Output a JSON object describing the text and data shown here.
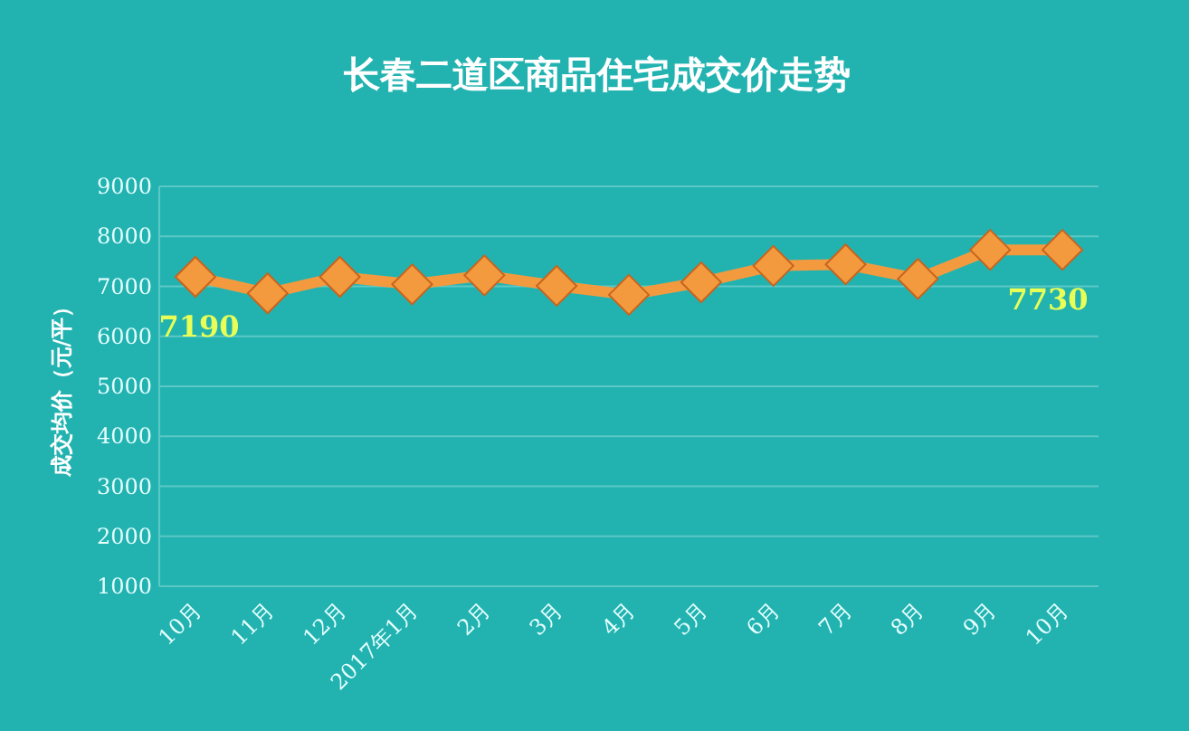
{
  "chart_data": {
    "type": "line",
    "title": "长春二道区商品住宅成交价走势",
    "ylabel": "成交均价（元/平）",
    "categories": [
      "10月",
      "11月",
      "12月",
      "2017年1月",
      "2月",
      "3月",
      "4月",
      "5月",
      "6月",
      "7月",
      "8月",
      "9月",
      "10月"
    ],
    "series": [
      {
        "color": "#f39a3e",
        "values": [
          7190,
          6860,
          7190,
          7040,
          7220,
          7010,
          6830,
          7080,
          7410,
          7440,
          7150,
          7730,
          7730
        ],
        "value_labels": [
          "7190",
          null,
          null,
          null,
          null,
          null,
          null,
          null,
          null,
          null,
          null,
          null,
          "7730"
        ]
      }
    ],
    "ylim": [
      1000,
      9000
    ],
    "yticks": [
      1000,
      2000,
      3000,
      4000,
      5000,
      6000,
      7000,
      8000,
      9000
    ],
    "grid": "y",
    "marker": "diamond"
  }
}
